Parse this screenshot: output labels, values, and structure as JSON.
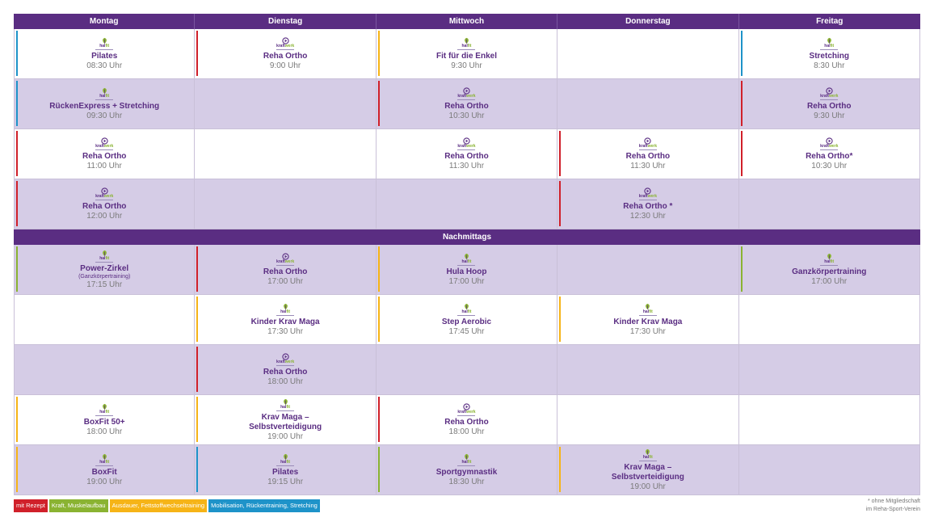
{
  "colors": {
    "rezept": "#d0202a",
    "kraft": "#8ab332",
    "ausdauer": "#f6b417",
    "mobil": "#1e93c9"
  },
  "logos": {
    "kraft": {
      "text_a": "kraft",
      "text_b": "werk",
      "icon": "play-circle-icon"
    },
    "hallfit": {
      "text_a": "hal",
      "text_b": "fit",
      "icon": "leaf-icon"
    }
  },
  "days": [
    "Montag",
    "Dienstag",
    "Mittwoch",
    "Donnerstag",
    "Freitag"
  ],
  "afternoon_label": "Nachmittags",
  "morning": [
    [
      {
        "logo": "hallfit",
        "color": "mobil",
        "title": "Pilates",
        "time": "08:30 Uhr"
      },
      {
        "logo": "kraft",
        "color": "rezept",
        "title": "Reha Ortho",
        "time": "9:00 Uhr"
      },
      {
        "logo": "hallfit",
        "color": "ausdauer",
        "title": "Fit für die Enkel",
        "time": "9:30 Uhr"
      },
      null,
      {
        "logo": "hallfit",
        "color": "mobil",
        "title": "Stretching",
        "time": "8:30 Uhr"
      }
    ],
    [
      {
        "logo": "hallfit",
        "color": "mobil",
        "title": "RückenExpress + Stretching",
        "time": "09:30 Uhr"
      },
      null,
      {
        "logo": "kraft",
        "color": "rezept",
        "title": "Reha Ortho",
        "time": "10:30 Uhr"
      },
      null,
      {
        "logo": "kraft",
        "color": "rezept",
        "title": "Reha Ortho",
        "time": "9:30 Uhr"
      }
    ],
    [
      {
        "logo": "kraft",
        "color": "rezept",
        "title": "Reha Ortho",
        "time": "11:00 Uhr"
      },
      null,
      {
        "logo": "kraft",
        "color": null,
        "title": "Reha Ortho",
        "time": "11:30 Uhr"
      },
      {
        "logo": "kraft",
        "color": "rezept",
        "title": "Reha Ortho",
        "time": "11:30 Uhr"
      },
      {
        "logo": "kraft",
        "color": "rezept",
        "title": "Reha Ortho*",
        "time": "10:30 Uhr"
      }
    ],
    [
      {
        "logo": "kraft",
        "color": "rezept",
        "title": "Reha Ortho",
        "time": "12:00 Uhr"
      },
      null,
      null,
      {
        "logo": "kraft",
        "color": "rezept",
        "title": "Reha Ortho *",
        "time": "12:30 Uhr"
      },
      null
    ]
  ],
  "afternoon": [
    [
      {
        "logo": "hallfit",
        "color": "kraft",
        "title": "Power-Zirkel",
        "note": "(Ganzkörpertraining)",
        "time": "17:15 Uhr"
      },
      {
        "logo": "kraft",
        "color": "rezept",
        "title": "Reha Ortho",
        "time": "17:00 Uhr"
      },
      {
        "logo": "hallfit",
        "color": "ausdauer",
        "title": "Hula Hoop",
        "time": "17:00 Uhr"
      },
      null,
      {
        "logo": "hallfit",
        "color": "kraft",
        "title": "Ganzkörpertraining",
        "time": "17:00 Uhr"
      }
    ],
    [
      null,
      {
        "logo": "hallfit",
        "color": "ausdauer",
        "title": "Kinder Krav Maga",
        "time": "17:30 Uhr"
      },
      {
        "logo": "hallfit",
        "color": "ausdauer",
        "title": "Step Aerobic",
        "time": "17:45 Uhr"
      },
      {
        "logo": "hallfit",
        "color": "ausdauer",
        "title": "Kinder Krav Maga",
        "time": "17:30 Uhr"
      },
      null
    ],
    [
      null,
      {
        "logo": "kraft",
        "color": "rezept",
        "title": "Reha Ortho",
        "time": "18:00 Uhr"
      },
      null,
      null,
      null
    ],
    [
      {
        "logo": "hallfit",
        "color": "ausdauer",
        "title": "BoxFit 50+",
        "time": "18:00 Uhr"
      },
      {
        "logo": "hallfit",
        "color": "ausdauer",
        "title": "Krav Maga –",
        "title2": "Selbstverteidigung",
        "time": "19:00 Uhr"
      },
      {
        "logo": "kraft",
        "color": "rezept",
        "title": "Reha Ortho",
        "time": "18:00 Uhr"
      },
      null,
      null
    ],
    [
      {
        "logo": "hallfit",
        "color": "ausdauer",
        "title": "BoxFit",
        "time": "19:00 Uhr"
      },
      {
        "logo": "hallfit",
        "color": "mobil",
        "title": "Pilates",
        "time": "19:15 Uhr"
      },
      {
        "logo": "hallfit",
        "color": "kraft",
        "title": "Sportgymnastik",
        "time": "18:30 Uhr"
      },
      {
        "logo": "hallfit",
        "color": "ausdauer",
        "title": "Krav Maga –",
        "title2": "Selbstverteidigung",
        "time": "19:00 Uhr"
      },
      null
    ]
  ],
  "legend": [
    {
      "label": "mit Rezept",
      "color": "rezept"
    },
    {
      "label": "Kraft, Muskelaufbau",
      "color": "kraft"
    },
    {
      "label": "Ausdauer, Fettstoffwechseltraining",
      "color": "ausdauer"
    },
    {
      "label": "Mobilisation, Rückentraining, Stretching",
      "color": "mobil"
    }
  ],
  "footnote": {
    "line1": "* ohne Mitgliedschaft",
    "line2": "im Reha-Sport-Verein"
  }
}
